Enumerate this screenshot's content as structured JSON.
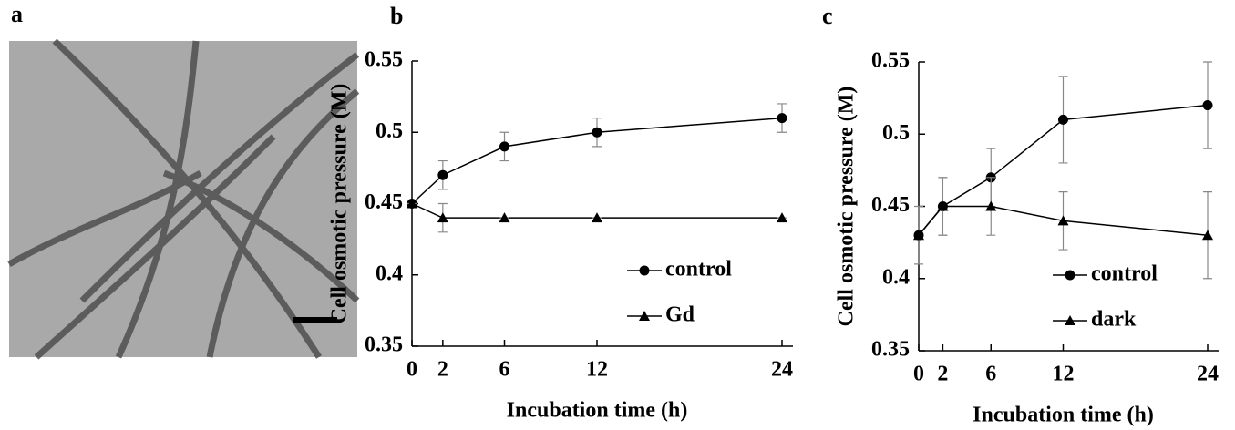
{
  "panels": [
    "a",
    "b",
    "c"
  ],
  "chart_data": [
    {
      "type": "line",
      "xlabel": "Incubation time (h)",
      "ylabel": "Cell osmotic pressure (M)",
      "x": [
        0,
        2,
        6,
        12,
        24
      ],
      "xlim": [
        0,
        24
      ],
      "xticks": [
        0,
        2,
        6,
        12,
        24
      ],
      "ylim": [
        0.35,
        0.55
      ],
      "yticks": [
        0.35,
        0.4,
        0.45,
        0.5,
        0.55
      ],
      "legend": "lower right",
      "series": [
        {
          "name": "control",
          "color": "#000000",
          "marker": "circle",
          "values": [
            0.45,
            0.47,
            0.49,
            0.5,
            0.51
          ],
          "errors": [
            0,
            0.01,
            0.01,
            0.01,
            0.01
          ]
        },
        {
          "name": "Gd",
          "color": "#000000",
          "marker": "triangle",
          "values": [
            0.45,
            0.44,
            0.44,
            0.44,
            0.44
          ],
          "errors": [
            0,
            0.01,
            0,
            0,
            0
          ]
        }
      ]
    },
    {
      "type": "line",
      "xlabel": "Incubation time (h)",
      "ylabel": "Cell osmotic pressure (M)",
      "x": [
        0,
        2,
        6,
        12,
        24
      ],
      "xlim": [
        0,
        24
      ],
      "xticks": [
        0,
        2,
        6,
        12,
        24
      ],
      "ylim": [
        0.35,
        0.55
      ],
      "yticks": [
        0.35,
        0.4,
        0.45,
        0.5,
        0.55
      ],
      "legend": "lower right",
      "series": [
        {
          "name": "control",
          "color": "#000000",
          "marker": "circle",
          "values": [
            0.43,
            0.45,
            0.47,
            0.51,
            0.52
          ],
          "errors": [
            0,
            0.02,
            0.02,
            0.03,
            0.03
          ]
        },
        {
          "name": "dark",
          "color": "#000000",
          "marker": "triangle",
          "values": [
            0.43,
            0.45,
            0.45,
            0.44,
            0.43
          ],
          "errors": [
            0.02,
            0.02,
            0.02,
            0.02,
            0.03
          ]
        }
      ]
    }
  ]
}
